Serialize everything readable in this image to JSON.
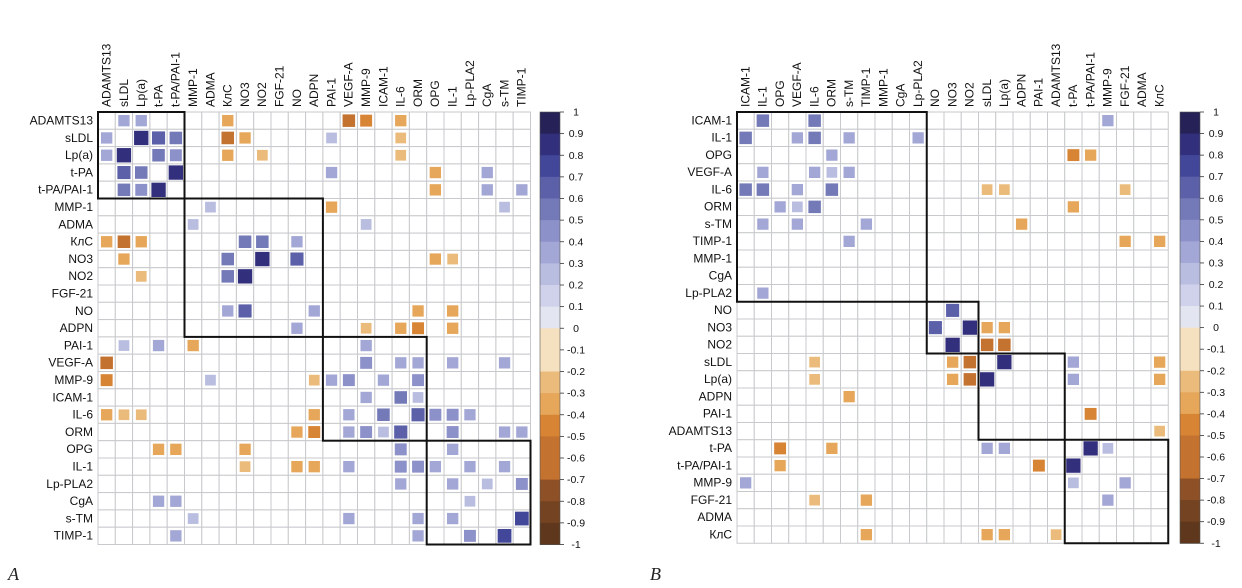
{
  "chart_data": [
    {
      "type": "heatmap",
      "panel_label": "A",
      "title": "",
      "xlabel": "",
      "ylabel": "",
      "labels": [
        "ADAMTS13",
        "sLDL",
        "Lp(a)",
        "t-PA",
        "t-PA/PAI-1",
        "MMP-1",
        "ADMA",
        "КлС",
        "NO3",
        "NO2",
        "FGF-21",
        "NO",
        "ADPN",
        "PAI-1",
        "VEGF-A",
        "MMP-9",
        "ICAM-1",
        "IL-6",
        "ORM",
        "OPG",
        "IL-1",
        "Lp-PLA2",
        "CgA",
        "s-TM",
        "TIMP-1"
      ],
      "clusters": [
        [
          0,
          4
        ],
        [
          5,
          12
        ],
        [
          13,
          18
        ],
        [
          19,
          24
        ]
      ],
      "colorbar": {
        "min": -1,
        "max": 1,
        "ticks": [
          "1",
          "0.9",
          "0.8",
          "0.7",
          "0.6",
          "0.5",
          "0.4",
          "0.3",
          "0.2",
          "0.1",
          "0",
          "-0.1",
          "-0.2",
          "-0.3",
          "-0.4",
          "-0.5",
          "-0.6",
          "-0.7",
          "-0.8",
          "-0.9",
          "-1"
        ]
      },
      "cells": [
        [
          0,
          1,
          0.4
        ],
        [
          0,
          2,
          0.4
        ],
        [
          0,
          7,
          -0.4
        ],
        [
          0,
          14,
          -0.6
        ],
        [
          0,
          15,
          -0.5
        ],
        [
          0,
          17,
          -0.4
        ],
        [
          1,
          0,
          0.4
        ],
        [
          1,
          2,
          0.9
        ],
        [
          1,
          3,
          0.7
        ],
        [
          1,
          4,
          0.6
        ],
        [
          1,
          7,
          -0.6
        ],
        [
          1,
          8,
          -0.4
        ],
        [
          1,
          13,
          0.3
        ],
        [
          1,
          17,
          -0.3
        ],
        [
          2,
          0,
          0.4
        ],
        [
          2,
          1,
          0.9
        ],
        [
          2,
          3,
          0.6
        ],
        [
          2,
          4,
          0.5
        ],
        [
          2,
          7,
          -0.4
        ],
        [
          2,
          9,
          -0.3
        ],
        [
          2,
          17,
          -0.3
        ],
        [
          3,
          1,
          0.7
        ],
        [
          3,
          2,
          0.6
        ],
        [
          3,
          4,
          0.9
        ],
        [
          3,
          13,
          0.4
        ],
        [
          3,
          19,
          -0.4
        ],
        [
          3,
          22,
          0.4
        ],
        [
          4,
          1,
          0.6
        ],
        [
          4,
          2,
          0.5
        ],
        [
          4,
          3,
          0.9
        ],
        [
          4,
          19,
          -0.4
        ],
        [
          4,
          22,
          0.4
        ],
        [
          4,
          24,
          0.4
        ],
        [
          5,
          6,
          0.3
        ],
        [
          5,
          13,
          -0.4
        ],
        [
          5,
          23,
          0.3
        ],
        [
          6,
          5,
          0.3
        ],
        [
          6,
          15,
          0.3
        ],
        [
          7,
          0,
          -0.4
        ],
        [
          7,
          1,
          -0.6
        ],
        [
          7,
          2,
          -0.4
        ],
        [
          7,
          8,
          0.6
        ],
        [
          7,
          9,
          0.6
        ],
        [
          7,
          11,
          0.4
        ],
        [
          8,
          1,
          -0.4
        ],
        [
          8,
          7,
          0.6
        ],
        [
          8,
          9,
          0.9
        ],
        [
          8,
          11,
          0.7
        ],
        [
          8,
          19,
          -0.4
        ],
        [
          8,
          20,
          -0.3
        ],
        [
          9,
          2,
          -0.3
        ],
        [
          9,
          7,
          0.6
        ],
        [
          9,
          8,
          0.9
        ],
        [
          11,
          7,
          0.4
        ],
        [
          11,
          8,
          0.7
        ],
        [
          11,
          12,
          0.4
        ],
        [
          11,
          18,
          -0.4
        ],
        [
          11,
          20,
          -0.4
        ],
        [
          12,
          11,
          0.4
        ],
        [
          12,
          15,
          -0.3
        ],
        [
          12,
          17,
          -0.4
        ],
        [
          12,
          18,
          -0.5
        ],
        [
          12,
          20,
          -0.4
        ],
        [
          13,
          1,
          0.3
        ],
        [
          13,
          3,
          0.4
        ],
        [
          13,
          5,
          -0.4
        ],
        [
          13,
          15,
          0.4
        ],
        [
          14,
          0,
          -0.6
        ],
        [
          14,
          15,
          0.5
        ],
        [
          14,
          17,
          0.4
        ],
        [
          14,
          18,
          0.4
        ],
        [
          14,
          20,
          0.4
        ],
        [
          14,
          23,
          0.4
        ],
        [
          15,
          0,
          -0.5
        ],
        [
          15,
          6,
          0.3
        ],
        [
          15,
          12,
          -0.3
        ],
        [
          15,
          13,
          0.4
        ],
        [
          15,
          14,
          0.5
        ],
        [
          15,
          16,
          0.4
        ],
        [
          15,
          18,
          0.5
        ],
        [
          16,
          15,
          0.4
        ],
        [
          16,
          17,
          0.6
        ],
        [
          16,
          18,
          0.3
        ],
        [
          17,
          0,
          -0.4
        ],
        [
          17,
          1,
          -0.3
        ],
        [
          17,
          2,
          -0.3
        ],
        [
          17,
          12,
          -0.4
        ],
        [
          17,
          14,
          0.4
        ],
        [
          17,
          16,
          0.6
        ],
        [
          17,
          18,
          0.7
        ],
        [
          17,
          19,
          0.5
        ],
        [
          17,
          20,
          0.5
        ],
        [
          17,
          21,
          0.4
        ],
        [
          18,
          11,
          -0.4
        ],
        [
          18,
          12,
          -0.5
        ],
        [
          18,
          14,
          0.4
        ],
        [
          18,
          15,
          0.5
        ],
        [
          18,
          16,
          0.3
        ],
        [
          18,
          17,
          0.7
        ],
        [
          18,
          20,
          0.5
        ],
        [
          18,
          23,
          0.4
        ],
        [
          18,
          24,
          0.4
        ],
        [
          19,
          3,
          -0.4
        ],
        [
          19,
          4,
          -0.4
        ],
        [
          19,
          8,
          -0.4
        ],
        [
          19,
          17,
          0.5
        ],
        [
          19,
          20,
          0.4
        ],
        [
          20,
          8,
          -0.3
        ],
        [
          20,
          11,
          -0.4
        ],
        [
          20,
          12,
          -0.4
        ],
        [
          20,
          14,
          0.4
        ],
        [
          20,
          17,
          0.5
        ],
        [
          20,
          18,
          0.5
        ],
        [
          20,
          19,
          0.4
        ],
        [
          20,
          21,
          0.4
        ],
        [
          20,
          23,
          0.4
        ],
        [
          21,
          17,
          0.4
        ],
        [
          21,
          20,
          0.4
        ],
        [
          21,
          22,
          0.3
        ],
        [
          21,
          24,
          0.5
        ],
        [
          22,
          3,
          0.4
        ],
        [
          22,
          4,
          0.4
        ],
        [
          22,
          21,
          0.3
        ],
        [
          23,
          5,
          0.3
        ],
        [
          23,
          14,
          0.4
        ],
        [
          23,
          18,
          0.4
        ],
        [
          23,
          20,
          0.4
        ],
        [
          23,
          24,
          0.8
        ],
        [
          24,
          4,
          0.4
        ],
        [
          24,
          18,
          0.4
        ],
        [
          24,
          21,
          0.5
        ],
        [
          24,
          23,
          0.8
        ]
      ]
    },
    {
      "type": "heatmap",
      "panel_label": "B",
      "title": "",
      "xlabel": "",
      "ylabel": "",
      "labels": [
        "ICAM-1",
        "IL-1",
        "OPG",
        "VEGF-A",
        "IL-6",
        "ORM",
        "s-TM",
        "TIMP-1",
        "MMP-1",
        "CgA",
        "Lp-PLA2",
        "NO",
        "NO3",
        "NO2",
        "sLDL",
        "Lp(a)",
        "ADPN",
        "PAI-1",
        "ADAMTS13",
        "t-PA",
        "t-PA/PAI-1",
        "MMP-9",
        "FGF-21",
        "ADMA",
        "КлС"
      ],
      "clusters": [
        [
          0,
          10
        ],
        [
          11,
          13
        ],
        [
          14,
          18
        ],
        [
          19,
          24
        ]
      ],
      "colorbar": {
        "min": -1,
        "max": 1,
        "ticks": [
          "1",
          "0.9",
          "0.8",
          "0.7",
          "0.6",
          "0.5",
          "0.4",
          "0.3",
          "0.2",
          "0.1",
          "0",
          "-0.1",
          "-0.2",
          "-0.3",
          "-0.4",
          "-0.5",
          "-0.6",
          "-0.7",
          "-0.8",
          "-0.9",
          "-1"
        ]
      },
      "cells": [
        [
          0,
          1,
          0.6
        ],
        [
          0,
          4,
          0.6
        ],
        [
          0,
          21,
          0.4
        ],
        [
          1,
          0,
          0.6
        ],
        [
          1,
          3,
          0.4
        ],
        [
          1,
          4,
          0.6
        ],
        [
          1,
          6,
          0.4
        ],
        [
          1,
          10,
          0.4
        ],
        [
          2,
          5,
          0.4
        ],
        [
          2,
          19,
          -0.5
        ],
        [
          2,
          20,
          -0.4
        ],
        [
          3,
          1,
          0.4
        ],
        [
          3,
          4,
          0.4
        ],
        [
          3,
          5,
          0.3
        ],
        [
          3,
          6,
          0.4
        ],
        [
          4,
          0,
          0.6
        ],
        [
          4,
          1,
          0.6
        ],
        [
          4,
          3,
          0.4
        ],
        [
          4,
          5,
          0.6
        ],
        [
          4,
          14,
          -0.3
        ],
        [
          4,
          15,
          -0.3
        ],
        [
          4,
          22,
          -0.3
        ],
        [
          5,
          2,
          0.4
        ],
        [
          5,
          3,
          0.3
        ],
        [
          5,
          4,
          0.6
        ],
        [
          5,
          19,
          -0.4
        ],
        [
          6,
          1,
          0.4
        ],
        [
          6,
          3,
          0.4
        ],
        [
          6,
          7,
          0.4
        ],
        [
          6,
          16,
          -0.4
        ],
        [
          7,
          6,
          0.4
        ],
        [
          7,
          22,
          -0.4
        ],
        [
          7,
          24,
          -0.4
        ],
        [
          10,
          1,
          0.4
        ],
        [
          11,
          12,
          0.7
        ],
        [
          12,
          11,
          0.7
        ],
        [
          12,
          13,
          0.9
        ],
        [
          12,
          14,
          -0.4
        ],
        [
          12,
          15,
          -0.4
        ],
        [
          13,
          12,
          0.9
        ],
        [
          13,
          14,
          -0.6
        ],
        [
          13,
          15,
          -0.6
        ],
        [
          14,
          4,
          -0.3
        ],
        [
          14,
          12,
          -0.4
        ],
        [
          14,
          13,
          -0.6
        ],
        [
          14,
          15,
          0.9
        ],
        [
          14,
          19,
          0.4
        ],
        [
          14,
          24,
          -0.4
        ],
        [
          15,
          4,
          -0.3
        ],
        [
          15,
          12,
          -0.4
        ],
        [
          15,
          13,
          -0.6
        ],
        [
          15,
          14,
          0.9
        ],
        [
          15,
          19,
          0.4
        ],
        [
          15,
          24,
          -0.4
        ],
        [
          16,
          6,
          -0.4
        ],
        [
          17,
          20,
          -0.5
        ],
        [
          18,
          24,
          -0.3
        ],
        [
          19,
          2,
          -0.5
        ],
        [
          19,
          5,
          -0.4
        ],
        [
          19,
          14,
          0.4
        ],
        [
          19,
          15,
          0.4
        ],
        [
          19,
          20,
          0.9
        ],
        [
          19,
          21,
          0.3
        ],
        [
          20,
          2,
          -0.4
        ],
        [
          20,
          17,
          -0.5
        ],
        [
          20,
          19,
          0.9
        ],
        [
          21,
          0,
          0.4
        ],
        [
          21,
          19,
          0.3
        ],
        [
          21,
          22,
          0.4
        ],
        [
          22,
          4,
          -0.3
        ],
        [
          22,
          7,
          -0.4
        ],
        [
          22,
          21,
          0.4
        ],
        [
          24,
          7,
          -0.4
        ],
        [
          24,
          14,
          -0.4
        ],
        [
          24,
          15,
          -0.4
        ],
        [
          24,
          18,
          -0.3
        ]
      ]
    }
  ],
  "palette": {
    "positive": [
      "#f3f3f6",
      "#e3e5f1",
      "#cfd2ea",
      "#b9bde0",
      "#a3a7d5",
      "#8d91c9",
      "#7479b8",
      "#5b60a8",
      "#43479a",
      "#322f7c",
      "#262156"
    ],
    "negative": [
      "#f8f2e6",
      "#f5e0c0",
      "#f0cf9e",
      "#ebbb7c",
      "#e6a75b",
      "#d88435",
      "#c4722f",
      "#a85f2a",
      "#8e5026",
      "#744321",
      "#5e371c"
    ]
  }
}
